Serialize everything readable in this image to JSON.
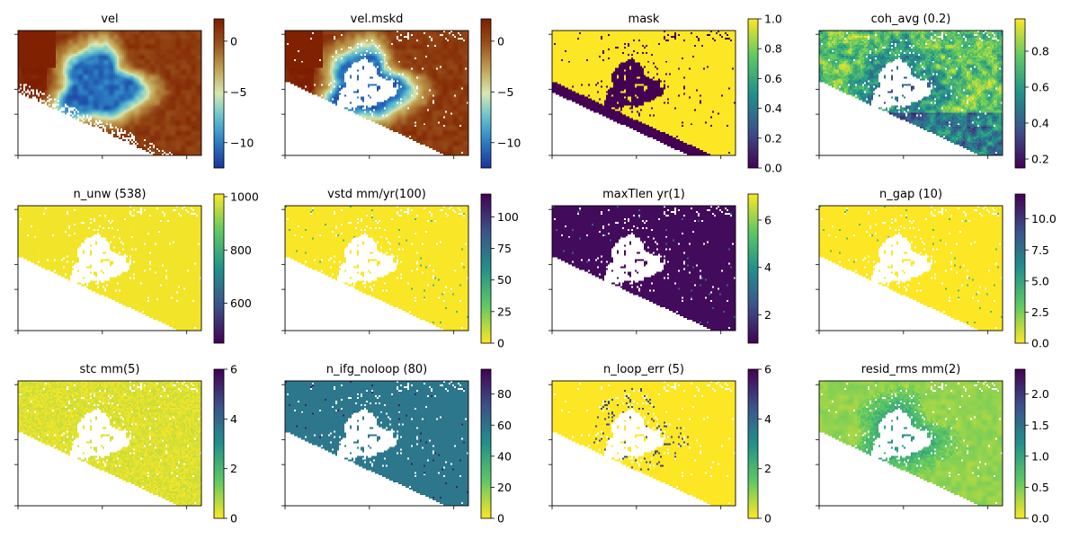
{
  "chart_data": [
    {
      "type": "heatmap",
      "title": "vel",
      "cmap": "roma",
      "clim": [
        -12.5,
        2.2
      ],
      "colorbar_ticks": [
        {
          "value": 0,
          "label": "0"
        },
        {
          "value": -5,
          "label": "−5"
        },
        {
          "value": -10,
          "label": "−10"
        }
      ],
      "regions": {
        "subsidence_bowl": -10.5,
        "bowl_rim": -3.5,
        "background": 0.8,
        "far_west": 2.0
      }
    },
    {
      "type": "heatmap",
      "title": "vel.mskd",
      "cmap": "roma",
      "clim": [
        -12.5,
        2.2
      ],
      "colorbar_ticks": [
        {
          "value": 0,
          "label": "0"
        },
        {
          "value": -5,
          "label": "−5"
        },
        {
          "value": -10,
          "label": "−10"
        }
      ]
    },
    {
      "type": "heatmap",
      "title": "mask",
      "cmap": "viridis",
      "clim": [
        0,
        1
      ],
      "colorbar_ticks": [
        {
          "value": 0,
          "label": "0.0"
        },
        {
          "value": 0.2,
          "label": "0.2"
        },
        {
          "value": 0.4,
          "label": "0.4"
        },
        {
          "value": 0.6,
          "label": "0.6"
        },
        {
          "value": 0.8,
          "label": "0.8"
        },
        {
          "value": 1,
          "label": "1.0"
        }
      ]
    },
    {
      "type": "heatmap",
      "title": "coh_avg (0.2)",
      "cmap": "viridis",
      "clim": [
        0.15,
        0.98
      ],
      "colorbar_ticks": [
        {
          "value": 0.2,
          "label": "0.2"
        },
        {
          "value": 0.4,
          "label": "0.4"
        },
        {
          "value": 0.6,
          "label": "0.6"
        },
        {
          "value": 0.8,
          "label": "0.8"
        }
      ]
    },
    {
      "type": "heatmap",
      "title": "n_unw (538)",
      "cmap": "viridis",
      "clim": [
        450,
        1010
      ],
      "colorbar_ticks": [
        {
          "value": 600,
          "label": "600"
        },
        {
          "value": 800,
          "label": "800"
        },
        {
          "value": 1000,
          "label": "1000"
        }
      ]
    },
    {
      "type": "heatmap",
      "title": "vstd mm/yr(100)",
      "cmap": "viridis_r",
      "clim": [
        0,
        118
      ],
      "colorbar_ticks": [
        {
          "value": 0,
          "label": "0"
        },
        {
          "value": 25,
          "label": "25"
        },
        {
          "value": 50,
          "label": "50"
        },
        {
          "value": 75,
          "label": "75"
        },
        {
          "value": 100,
          "label": "100"
        }
      ]
    },
    {
      "type": "heatmap",
      "title": "maxTlen yr(1)",
      "cmap": "viridis",
      "clim": [
        0.8,
        7.1
      ],
      "colorbar_ticks": [
        {
          "value": 2,
          "label": "2"
        },
        {
          "value": 4,
          "label": "4"
        },
        {
          "value": 6,
          "label": "6"
        }
      ]
    },
    {
      "type": "heatmap",
      "title": "n_gap (10)",
      "cmap": "viridis_r",
      "clim": [
        0,
        12
      ],
      "colorbar_ticks": [
        {
          "value": 0,
          "label": "0.0"
        },
        {
          "value": 2.5,
          "label": "2.5"
        },
        {
          "value": 5,
          "label": "5.0"
        },
        {
          "value": 7.5,
          "label": "7.5"
        },
        {
          "value": 10,
          "label": "10.0"
        }
      ]
    },
    {
      "type": "heatmap",
      "title": "stc mm(5)",
      "cmap": "viridis_r",
      "clim": [
        0,
        6
      ],
      "colorbar_ticks": [
        {
          "value": 0,
          "label": "0"
        },
        {
          "value": 2,
          "label": "2"
        },
        {
          "value": 4,
          "label": "4"
        },
        {
          "value": 6,
          "label": "6"
        }
      ]
    },
    {
      "type": "heatmap",
      "title": "n_ifg_noloop (80)",
      "cmap": "viridis_r",
      "clim": [
        0,
        96
      ],
      "colorbar_ticks": [
        {
          "value": 0,
          "label": "0"
        },
        {
          "value": 20,
          "label": "20"
        },
        {
          "value": 40,
          "label": "40"
        },
        {
          "value": 60,
          "label": "60"
        },
        {
          "value": 80,
          "label": "80"
        }
      ]
    },
    {
      "type": "heatmap",
      "title": "n_loop_err (5)",
      "cmap": "viridis_r",
      "clim": [
        0,
        6
      ],
      "colorbar_ticks": [
        {
          "value": 0,
          "label": "0"
        },
        {
          "value": 2,
          "label": "2"
        },
        {
          "value": 4,
          "label": "4"
        },
        {
          "value": 6,
          "label": "6"
        }
      ]
    },
    {
      "type": "heatmap",
      "title": "resid_rms mm(2)",
      "cmap": "viridis_r",
      "clim": [
        0,
        2.4
      ],
      "colorbar_ticks": [
        {
          "value": 0,
          "label": "0.0"
        },
        {
          "value": 0.5,
          "label": "0.5"
        },
        {
          "value": 1.0,
          "label": "1.0"
        },
        {
          "value": 1.5,
          "label": "1.5"
        },
        {
          "value": 2.0,
          "label": "2.0"
        }
      ]
    }
  ],
  "colors": {
    "masked": "#ffffff",
    "roma": [
      "#1a3399",
      "#2a7ac0",
      "#60c0d0",
      "#d8e8b0",
      "#c0a050",
      "#98501a",
      "#7e1e00"
    ],
    "viridis": [
      "#440154",
      "#3b528b",
      "#21918c",
      "#5ec962",
      "#fde725"
    ]
  },
  "panel_fields": [
    {
      "base": "roma",
      "mask": "none"
    },
    {
      "base": "roma",
      "mask": "mask"
    },
    {
      "base": "mask",
      "mask": "none"
    },
    {
      "base": "coh",
      "mask": "mask"
    },
    {
      "base": "flat",
      "value": 1000,
      "mask": "mask"
    },
    {
      "base": "flat",
      "value": 1,
      "mask": "mask"
    },
    {
      "base": "flat",
      "value": 1,
      "mask": "mask"
    },
    {
      "base": "flat",
      "value": 0,
      "mask": "mask"
    },
    {
      "base": "noise",
      "value": 0.3,
      "spread": 0.5,
      "mask": "mask"
    },
    {
      "base": "flat",
      "value": 58,
      "mask": "mask"
    },
    {
      "base": "loop",
      "value": 0,
      "mask": "mask"
    },
    {
      "base": "resid",
      "value": 0.4,
      "mask": "mask"
    }
  ]
}
